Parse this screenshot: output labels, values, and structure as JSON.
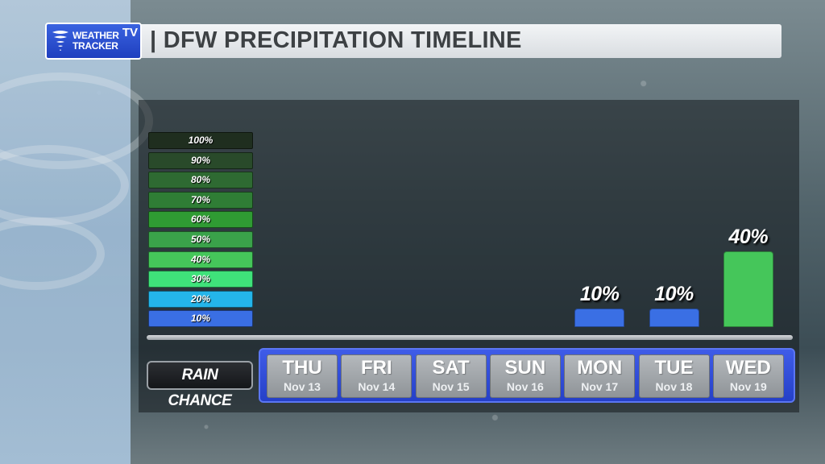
{
  "header": {
    "logo_line1": "WEATHER",
    "logo_line2": "TRACKER",
    "logo_tv": "TV",
    "title": "| DFW PRECIPITATION TIMELINE"
  },
  "legend": [
    {
      "label": "100%",
      "color": "#1f2e1f"
    },
    {
      "label": "90%",
      "color": "#294a2a"
    },
    {
      "label": "80%",
      "color": "#2e6a32"
    },
    {
      "label": "70%",
      "color": "#2f7d35"
    },
    {
      "label": "60%",
      "color": "#2f9b33"
    },
    {
      "label": "50%",
      "color": "#3aa24a"
    },
    {
      "label": "40%",
      "color": "#45c65a"
    },
    {
      "label": "30%",
      "color": "#3fe27a"
    },
    {
      "label": "20%",
      "color": "#24b5ea"
    },
    {
      "label": "10%",
      "color": "#3a6fe4"
    }
  ],
  "row_label": "RAIN CHANCE",
  "chart_data": {
    "type": "bar",
    "categories": [
      "THU",
      "FRI",
      "SAT",
      "SUN",
      "MON",
      "TUE",
      "WED"
    ],
    "dates": [
      "Nov 13",
      "Nov 14",
      "Nov 15",
      "Nov 16",
      "Nov 17",
      "Nov 18",
      "Nov 19"
    ],
    "values": [
      0,
      0,
      0,
      0,
      10,
      10,
      40
    ],
    "value_labels": [
      "",
      "",
      "",
      "",
      "10%",
      "10%",
      "40%"
    ],
    "ylim": [
      0,
      100
    ],
    "bar_colors": [
      "#3a6fe4",
      "#3a6fe4",
      "#3a6fe4",
      "#3a6fe4",
      "#3a6fe4",
      "#3a6fe4",
      "#45c65a"
    ]
  }
}
